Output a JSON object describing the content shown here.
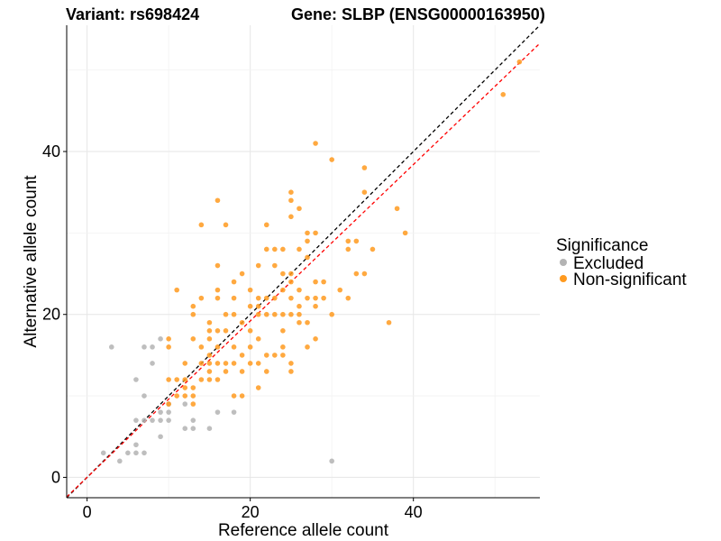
{
  "chart_data": {
    "type": "scatter",
    "title_left": "Variant: rs698424",
    "title_right": "Gene: SLBP (ENSG00000163950)",
    "xlabel": "Reference allele count",
    "ylabel": "Alternative allele count",
    "xlim": [
      -2.5,
      55.5
    ],
    "ylim": [
      -2.5,
      55.5
    ],
    "xticks": [
      0,
      20,
      40
    ],
    "yticks": [
      0,
      20,
      40
    ],
    "grid": true,
    "legend": {
      "title": "Significance",
      "position": "right",
      "entries": [
        {
          "label": "Excluded",
          "color": "#b3b3b3"
        },
        {
          "label": "Non-significant",
          "color": "#ff9a1f"
        }
      ]
    },
    "reference_lines": [
      {
        "style": "dashed",
        "color": "#000000",
        "intercept": 0,
        "slope": 1
      },
      {
        "style": "dashed",
        "color": "#ff0000",
        "intercept": 0,
        "slope": 0.96
      }
    ],
    "series": [
      {
        "name": "Excluded",
        "color": "#b3b3b3",
        "points": [
          [
            2,
            3
          ],
          [
            3,
            16
          ],
          [
            4,
            2
          ],
          [
            5,
            3
          ],
          [
            6,
            3
          ],
          [
            6,
            4
          ],
          [
            6,
            7
          ],
          [
            6,
            12
          ],
          [
            7,
            3
          ],
          [
            7,
            7
          ],
          [
            7,
            10
          ],
          [
            7,
            16
          ],
          [
            8,
            14
          ],
          [
            8,
            16
          ],
          [
            8,
            7
          ],
          [
            9,
            5
          ],
          [
            9,
            7
          ],
          [
            9,
            8
          ],
          [
            9,
            17
          ],
          [
            10,
            7
          ],
          [
            10,
            9
          ],
          [
            10,
            8
          ],
          [
            12,
            6
          ],
          [
            12,
            9
          ],
          [
            13,
            6
          ],
          [
            13,
            7
          ],
          [
            15,
            6
          ],
          [
            16,
            8
          ],
          [
            18,
            8
          ],
          [
            30,
            2
          ]
        ]
      },
      {
        "name": "Non-significant",
        "color": "#ff9a1f",
        "points": [
          [
            10,
            17
          ],
          [
            10,
            16
          ],
          [
            10,
            12
          ],
          [
            10,
            9
          ],
          [
            11,
            12
          ],
          [
            11,
            23
          ],
          [
            11,
            10
          ],
          [
            12,
            12
          ],
          [
            12,
            14
          ],
          [
            12,
            10
          ],
          [
            12,
            11
          ],
          [
            13,
            21
          ],
          [
            13,
            20
          ],
          [
            13,
            17
          ],
          [
            13,
            11
          ],
          [
            13,
            10
          ],
          [
            13,
            9
          ],
          [
            14,
            31
          ],
          [
            14,
            22
          ],
          [
            14,
            14
          ],
          [
            14,
            16
          ],
          [
            14,
            12
          ],
          [
            15,
            19
          ],
          [
            15,
            18
          ],
          [
            15,
            15
          ],
          [
            15,
            14
          ],
          [
            15,
            13
          ],
          [
            15,
            12
          ],
          [
            15,
            17
          ],
          [
            16,
            34
          ],
          [
            16,
            26
          ],
          [
            16,
            23
          ],
          [
            16,
            22
          ],
          [
            16,
            18
          ],
          [
            16,
            16
          ],
          [
            16,
            14
          ],
          [
            16,
            12
          ],
          [
            17,
            31
          ],
          [
            17,
            20
          ],
          [
            17,
            18
          ],
          [
            17,
            14
          ],
          [
            17,
            13
          ],
          [
            18,
            24
          ],
          [
            18,
            22
          ],
          [
            18,
            20
          ],
          [
            18,
            16
          ],
          [
            18,
            14
          ],
          [
            18,
            10
          ],
          [
            19,
            25
          ],
          [
            19,
            19
          ],
          [
            19,
            15
          ],
          [
            19,
            13
          ],
          [
            19,
            10
          ],
          [
            20,
            23
          ],
          [
            20,
            21
          ],
          [
            20,
            18
          ],
          [
            20,
            16
          ],
          [
            20,
            14
          ],
          [
            21,
            26
          ],
          [
            21,
            22
          ],
          [
            21,
            21
          ],
          [
            21,
            20
          ],
          [
            21,
            17
          ],
          [
            21,
            14
          ],
          [
            21,
            11
          ],
          [
            22,
            31
          ],
          [
            22,
            28
          ],
          [
            22,
            22
          ],
          [
            22,
            20
          ],
          [
            22,
            15
          ],
          [
            22,
            13
          ],
          [
            23,
            28
          ],
          [
            23,
            26
          ],
          [
            23,
            22
          ],
          [
            23,
            20
          ],
          [
            23,
            15
          ],
          [
            24,
            28
          ],
          [
            24,
            25
          ],
          [
            24,
            23
          ],
          [
            24,
            20
          ],
          [
            24,
            18
          ],
          [
            24,
            16
          ],
          [
            24,
            15
          ],
          [
            25,
            35
          ],
          [
            25,
            34
          ],
          [
            25,
            32
          ],
          [
            25,
            25
          ],
          [
            25,
            24
          ],
          [
            25,
            22
          ],
          [
            25,
            20
          ],
          [
            25,
            14
          ],
          [
            25,
            13
          ],
          [
            26,
            33
          ],
          [
            26,
            28
          ],
          [
            26,
            23
          ],
          [
            26,
            21
          ],
          [
            26,
            20
          ],
          [
            26,
            19
          ],
          [
            27,
            30
          ],
          [
            27,
            29
          ],
          [
            27,
            27
          ],
          [
            27,
            22
          ],
          [
            27,
            19
          ],
          [
            27,
            16
          ],
          [
            28,
            41
          ],
          [
            28,
            30
          ],
          [
            28,
            24
          ],
          [
            28,
            22
          ],
          [
            28,
            21
          ],
          [
            28,
            17
          ],
          [
            29,
            24
          ],
          [
            29,
            22
          ],
          [
            30,
            39
          ],
          [
            30,
            20
          ],
          [
            31,
            23
          ],
          [
            32,
            29
          ],
          [
            32,
            28
          ],
          [
            32,
            22
          ],
          [
            33,
            29
          ],
          [
            33,
            25
          ],
          [
            34,
            38
          ],
          [
            34,
            35
          ],
          [
            34,
            25
          ],
          [
            35,
            28
          ],
          [
            37,
            19
          ],
          [
            38,
            33
          ],
          [
            39,
            30
          ],
          [
            51,
            47
          ],
          [
            53,
            51
          ]
        ]
      }
    ]
  }
}
